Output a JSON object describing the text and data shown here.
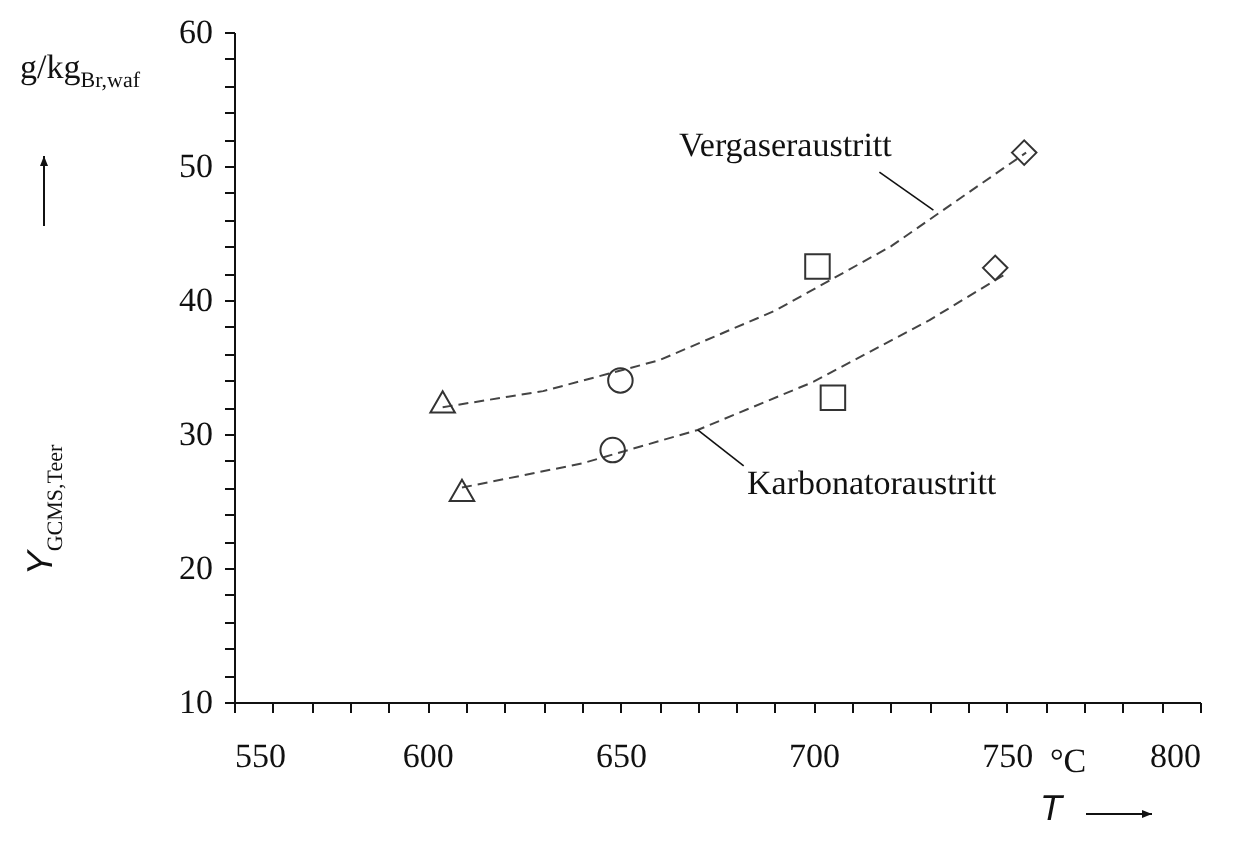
{
  "chart_data": {
    "type": "scatter",
    "xlabel": "T",
    "ylabel": "Y$_{GCMS,Teer}$",
    "xlim": [
      550,
      800
    ],
    "ylim": [
      10,
      60
    ],
    "xticks": [
      550,
      {
        "value": 560,
        "label": null
      },
      {
        "value": 570,
        "label": null
      },
      {
        "value": 580,
        "label": null
      },
      {
        "value": 590,
        "label": null
      },
      600,
      {
        "value": 610,
        "label": null
      },
      {
        "value": 620,
        "label": null
      },
      {
        "value": 630,
        "label": null
      },
      {
        "value": 640,
        "label": null
      },
      650,
      {
        "value": 660,
        "label": null
      },
      {
        "value": 670,
        "label": null
      },
      {
        "value": 680,
        "label": null
      },
      {
        "value": 690,
        "label": null
      },
      700,
      {
        "value": 710,
        "label": null
      },
      {
        "value": 720,
        "label": null
      },
      {
        "value": 730,
        "label": null
      },
      {
        "value": 740,
        "label": null
      },
      750,
      {
        "value": 760,
        "label": null
      },
      {
        "value": 770,
        "label": null
      },
      {
        "value": 780,
        "label": null
      },
      {
        "value": 790,
        "label": null
      },
      800
    ],
    "yticks": [
      10,
      {
        "value": 12,
        "label": null
      },
      {
        "value": 14,
        "label": null
      },
      {
        "value": 16,
        "label": null
      },
      {
        "value": 18,
        "label": null
      },
      20,
      {
        "value": 22,
        "label": null
      },
      {
        "value": 24,
        "label": null
      },
      {
        "value": 26,
        "label": null
      },
      {
        "value": 28,
        "label": null
      },
      30,
      {
        "value": 32,
        "label": null
      },
      {
        "value": 34,
        "label": null
      },
      {
        "value": 36,
        "label": null
      },
      {
        "value": 38,
        "label": null
      },
      40,
      {
        "value": 42,
        "label": null
      },
      {
        "value": 44,
        "label": null
      },
      {
        "value": 46,
        "label": null
      },
      {
        "value": 48,
        "label": null
      },
      50,
      {
        "value": 52,
        "label": null
      },
      {
        "value": 54,
        "label": null
      },
      {
        "value": 56,
        "label": null
      },
      {
        "value": 58,
        "label": null
      },
      60
    ],
    "grid": false,
    "series": [
      {
        "type": "line",
        "line_style": "dashed",
        "marker": "none",
        "color": "#444444",
        "x": [
          604,
          630,
          660,
          690,
          720,
          755
        ],
        "values": [
          32.0,
          33.2,
          35.5,
          39.2,
          44.0,
          51.0
        ]
      },
      {
        "type": "line",
        "line_style": "dashed",
        "marker": "none",
        "color": "#444444",
        "x": [
          609,
          640,
          670,
          700,
          730,
          750
        ],
        "values": [
          26.0,
          27.8,
          30.3,
          33.9,
          38.5,
          42.0
        ]
      },
      {
        "marker": "triangle",
        "color": "#333333",
        "x": [
          604,
          609
        ],
        "values": [
          32.4,
          25.8
        ]
      },
      {
        "marker": "circle",
        "color": "#333333",
        "x": [
          650,
          648
        ],
        "values": [
          34.0,
          28.8
        ]
      },
      {
        "marker": "square",
        "color": "#333333",
        "x": [
          701,
          705
        ],
        "values": [
          42.5,
          32.7
        ]
      },
      {
        "marker": "diamond",
        "color": "#333333",
        "x": [
          754.5,
          747
        ],
        "values": [
          51.0,
          42.4
        ]
      }
    ],
    "annotations": [
      {
        "text": "Vergaseraustritt",
        "x": 731,
        "y": 46.7
      },
      {
        "text": "Karbonatoraustritt",
        "x": 670,
        "y": 30.3
      },
      "g/kg$_{Br,waf}$",
      "°C"
    ]
  }
}
